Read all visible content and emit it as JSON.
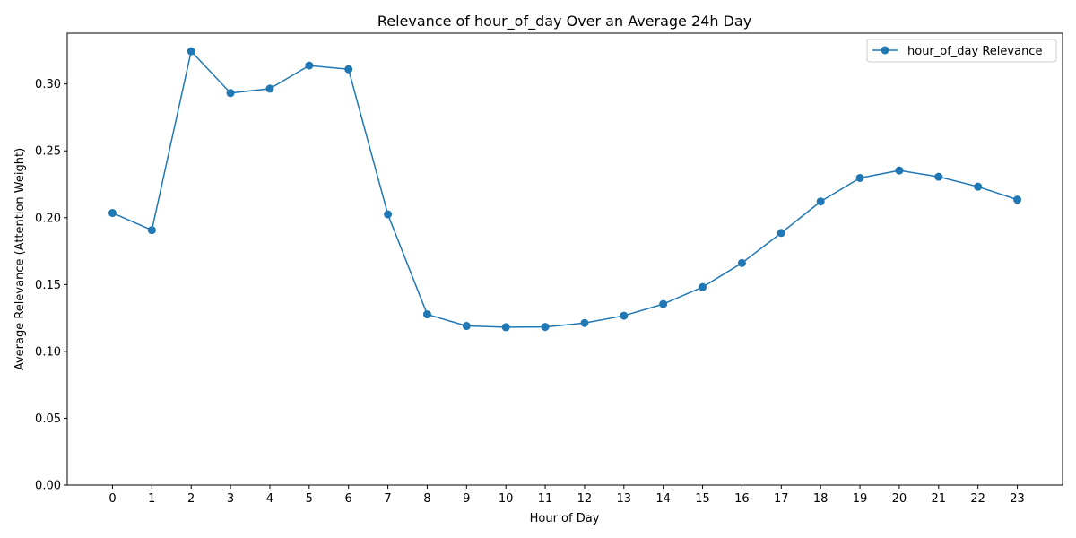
{
  "chart_data": {
    "type": "line",
    "title": "Relevance of hour_of_day Over an Average 24h Day",
    "xlabel": "Hour of Day",
    "ylabel": "Average Relevance (Attention Weight)",
    "x": [
      0,
      1,
      2,
      3,
      4,
      5,
      6,
      7,
      8,
      9,
      10,
      11,
      12,
      13,
      14,
      15,
      16,
      17,
      18,
      19,
      20,
      21,
      22,
      23
    ],
    "x_tick_labels": [
      "0",
      "1",
      "2",
      "3",
      "4",
      "5",
      "6",
      "7",
      "8",
      "9",
      "10",
      "11",
      "12",
      "13",
      "14",
      "15",
      "16",
      "17",
      "18",
      "19",
      "20",
      "21",
      "22",
      "23"
    ],
    "y_ticks": [
      0.0,
      0.05,
      0.1,
      0.15,
      0.2,
      0.25,
      0.3
    ],
    "y_tick_labels": [
      "0.00",
      "0.05",
      "0.10",
      "0.15",
      "0.20",
      "0.25",
      "0.30"
    ],
    "ylim": [
      0,
      0.338
    ],
    "xlim": [
      -1.15,
      24.15
    ],
    "grid": false,
    "legend_position": "upper-right",
    "series": [
      {
        "name": "hour_of_day Relevance",
        "color": "#1f77b4",
        "marker": "circle",
        "values": [
          0.2035,
          0.1907,
          0.3245,
          0.2932,
          0.2965,
          0.3138,
          0.311,
          0.2025,
          0.1277,
          0.119,
          0.1181,
          0.1183,
          0.1212,
          0.1267,
          0.1354,
          0.1481,
          0.1661,
          0.1886,
          0.2121,
          0.2297,
          0.2353,
          0.2306,
          0.2232,
          0.2135
        ]
      }
    ]
  }
}
